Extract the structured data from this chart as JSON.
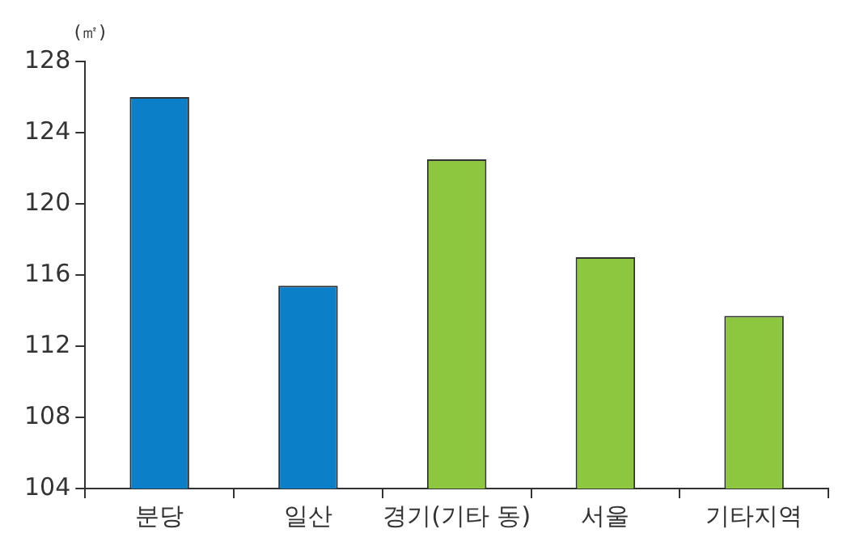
{
  "chart_data": {
    "type": "bar",
    "ylabel": "(㎡)",
    "categories": [
      "분당",
      "일산",
      "경기(기타 동)",
      "서울",
      "기타지역"
    ],
    "values": [
      126.0,
      115.4,
      122.5,
      117.0,
      113.7
    ],
    "colors": [
      "#0b7fc7",
      "#0b7fc7",
      "#8dc63f",
      "#8dc63f",
      "#8dc63f"
    ],
    "ylim": [
      104,
      128
    ],
    "yticks": [
      104,
      108,
      112,
      116,
      120,
      124,
      128
    ]
  }
}
